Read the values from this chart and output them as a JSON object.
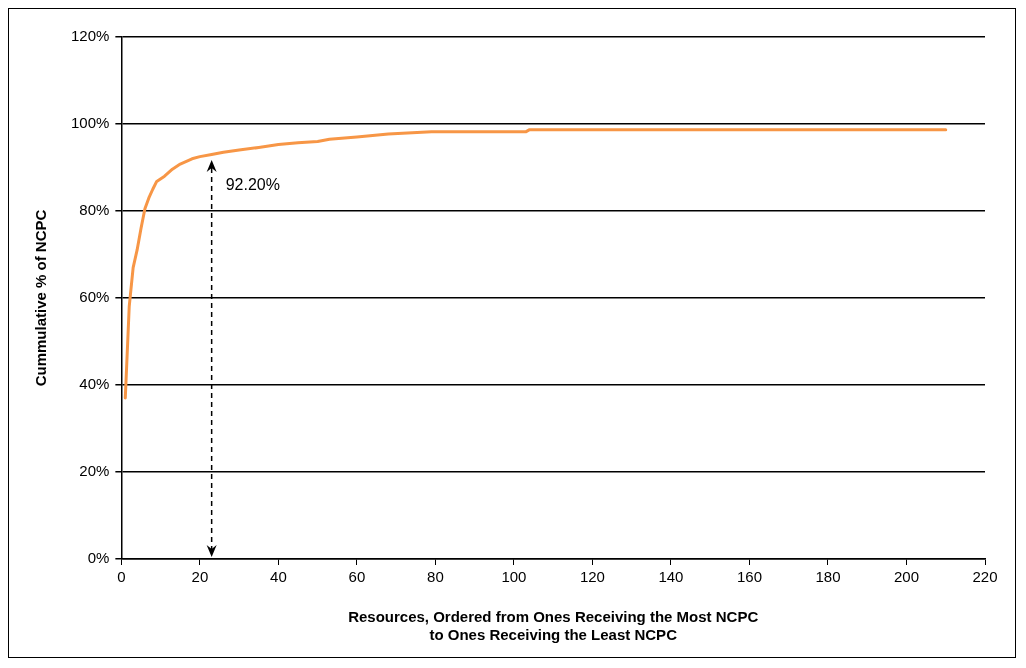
{
  "chart_data": {
    "type": "line",
    "xlabel": "Resources, Ordered from Ones Receiving the Most NCPC\nto Ones Receiving the Least NCPC",
    "ylabel": "Cummulative % of NCPC",
    "x": [
      1,
      2,
      3,
      4,
      5,
      6,
      7,
      8,
      9,
      11,
      13,
      15,
      18,
      20,
      23,
      26,
      30,
      35,
      40,
      45,
      50,
      53,
      60,
      68,
      79,
      103,
      104,
      210
    ],
    "series": [
      {
        "color": "#f79646",
        "values": [
          37,
          58,
          67,
          71,
          76,
          80.5,
          83,
          85,
          86.8,
          88,
          89.6,
          90.8,
          92,
          92.5,
          93,
          93.5,
          94,
          94.6,
          95.3,
          95.7,
          96,
          96.5,
          97,
          97.7,
          98.2,
          98.2,
          98.7,
          98.7
        ]
      }
    ],
    "xlim": [
      0,
      220
    ],
    "xticks": [
      0,
      20,
      40,
      60,
      80,
      100,
      120,
      140,
      160,
      180,
      200,
      220
    ],
    "ylim": [
      0,
      120
    ],
    "yticks": [
      {
        "value": 0,
        "label": "0%"
      },
      {
        "value": 20,
        "label": "20%"
      },
      {
        "value": 40,
        "label": "40%"
      },
      {
        "value": 60,
        "label": "60%"
      },
      {
        "value": 80,
        "label": "80%"
      },
      {
        "value": 100,
        "label": "100%"
      },
      {
        "value": 120,
        "label": "120%"
      }
    ],
    "grid": "y",
    "legend": false,
    "marker": "none",
    "line_style": "solid",
    "annotations": [
      {
        "text": "92.20%",
        "x": 23,
        "y": 92.2
      }
    ]
  }
}
